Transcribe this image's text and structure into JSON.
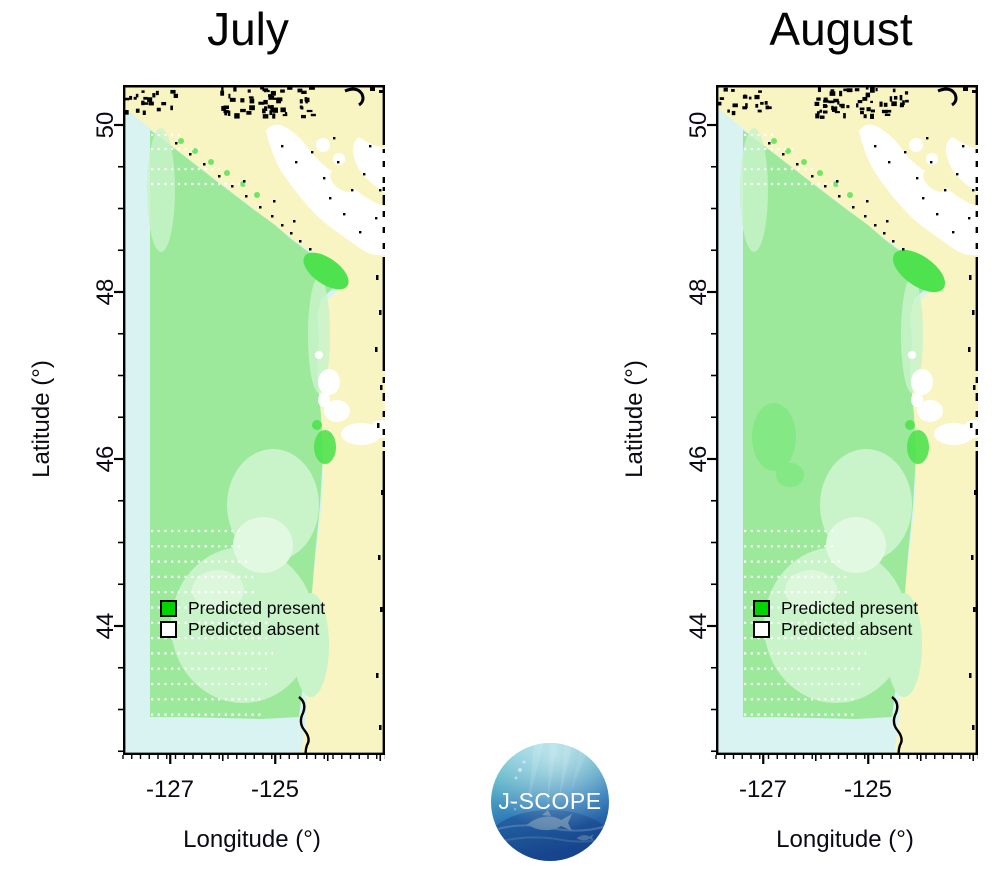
{
  "panels": [
    {
      "title": "July"
    },
    {
      "title": "August"
    }
  ],
  "axes": {
    "y_label": "Latitude (°)",
    "x_label": "Longitude (°)",
    "y_ticks": [
      "50",
      "48",
      "46",
      "44"
    ],
    "x_ticks": [
      "-127",
      "-125"
    ],
    "y_range": [
      42.5,
      50.5
    ],
    "x_range": [
      -127.9,
      -122.9
    ]
  },
  "legend": {
    "present_label": "Predicted present",
    "absent_label": "Predicted absent",
    "present_color": "#00d400",
    "absent_color": "#ffffff"
  },
  "logo": {
    "text": "J-SCOPE"
  },
  "map_colors": {
    "land": "#f8f5c2",
    "outside_domain": "#d8f3f2",
    "present": "#9ce99c",
    "present_pale": "#c9f3c9",
    "present_very_pale": "#e1f8e1",
    "present_bright": "#4fe24f",
    "present_medium": "#84e884",
    "absent": "#ffffff",
    "ink": "#000000"
  }
}
